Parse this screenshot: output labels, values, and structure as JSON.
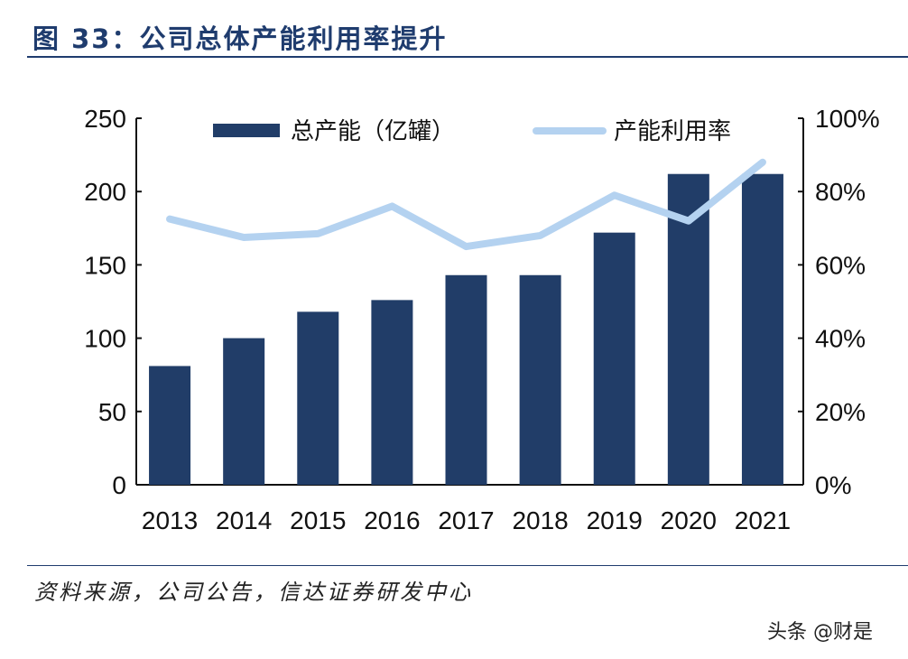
{
  "title": "图 33：公司总体产能利用率提升",
  "source": "资料来源，公司公告，信达证券研发中心",
  "watermark": "头条 @财是",
  "chart_data": {
    "type": "bar",
    "categories": [
      "2013",
      "2014",
      "2015",
      "2016",
      "2017",
      "2018",
      "2019",
      "2020",
      "2021"
    ],
    "series": [
      {
        "name": "总产能（亿罐）",
        "type": "bar",
        "axis": "left",
        "color": "#213d68",
        "values": [
          81,
          100,
          118,
          126,
          143,
          143,
          172,
          212,
          212
        ]
      },
      {
        "name": "产能利用率",
        "type": "line",
        "axis": "right",
        "color": "#b4d2f0",
        "values": [
          72.5,
          67.5,
          68.5,
          76,
          65,
          68,
          79,
          72,
          88
        ]
      }
    ],
    "yleft": {
      "ylim": [
        0,
        250
      ],
      "ticks": [
        "0",
        "50",
        "100",
        "150",
        "200",
        "250"
      ]
    },
    "yright": {
      "ylim": [
        0,
        100
      ],
      "ticks": [
        "0%",
        "20%",
        "40%",
        "60%",
        "80%",
        "100%"
      ]
    },
    "legend": "top",
    "grid": false
  }
}
